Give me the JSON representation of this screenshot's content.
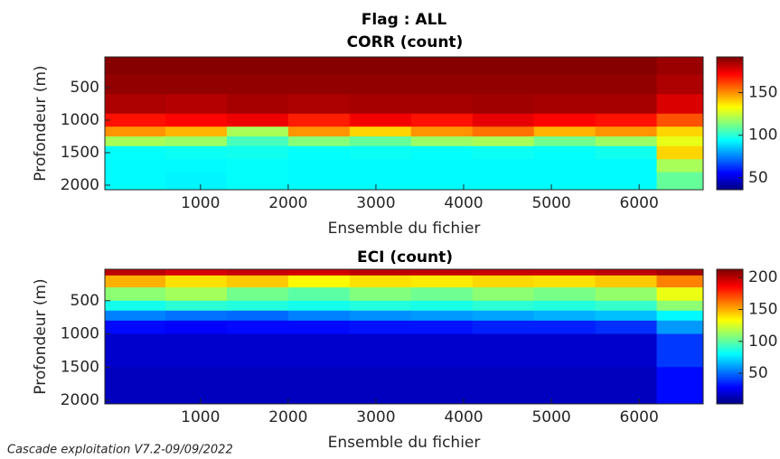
{
  "suptitle": "Flag : ALL",
  "footer": "Cascade exploitation V7.2-09/09/2022",
  "chart_data": [
    {
      "type": "heatmap",
      "title": "CORR (count)",
      "xlabel": "Ensemble du fichier",
      "ylabel": "Profondeur (m)",
      "colormap": "jet",
      "y_reversed": true,
      "xlim": [
        -90,
        6730
      ],
      "ylim": [
        28,
        2070
      ],
      "clim": [
        36,
        192
      ],
      "xticks": [
        1000,
        2000,
        3000,
        4000,
        5000,
        6000
      ],
      "yticks": [
        500,
        1000,
        1500,
        2000
      ],
      "cticks": [
        50,
        100,
        150
      ],
      "x_bins": [
        -90,
        600,
        1300,
        2000,
        2700,
        3400,
        4100,
        4800,
        5500,
        6200,
        6730
      ],
      "y_bins": [
        28,
        300,
        600,
        900,
        1100,
        1250,
        1400,
        1600,
        1800,
        2070
      ],
      "values": [
        [
          191,
          191,
          191,
          191,
          191,
          191,
          191,
          191,
          191,
          188
        ],
        [
          189,
          189,
          189,
          189,
          189,
          189,
          189,
          189,
          189,
          185
        ],
        [
          185,
          184,
          186,
          185,
          186,
          186,
          187,
          186,
          186,
          178
        ],
        [
          170,
          172,
          175,
          168,
          174,
          170,
          176,
          172,
          170,
          160
        ],
        [
          150,
          145,
          120,
          150,
          140,
          150,
          155,
          145,
          150,
          140
        ],
        [
          120,
          118,
          105,
          115,
          110,
          118,
          120,
          112,
          118,
          130
        ],
        [
          95,
          96,
          97,
          95,
          96,
          95,
          96,
          95,
          97,
          140
        ],
        [
          94,
          94,
          95,
          94,
          94,
          94,
          94,
          94,
          94,
          120
        ],
        [
          94,
          93,
          95,
          94,
          94,
          94,
          94,
          94,
          94,
          110
        ]
      ]
    },
    {
      "type": "heatmap",
      "title": "ECI (count)",
      "xlabel": "Ensemble du fichier",
      "ylabel": "Profondeur (m)",
      "colormap": "jet",
      "y_reversed": true,
      "xlim": [
        -90,
        6730
      ],
      "ylim": [
        27,
        2054
      ],
      "clim": [
        2,
        213
      ],
      "xticks": [
        1000,
        2000,
        3000,
        4000,
        5000,
        6000
      ],
      "yticks": [
        500,
        1000,
        1500,
        2000
      ],
      "cticks": [
        50,
        100,
        150,
        200
      ],
      "x_bins": [
        -90,
        600,
        1300,
        2000,
        2700,
        3400,
        4100,
        4800,
        5500,
        6200,
        6730
      ],
      "y_bins": [
        27,
        120,
        300,
        500,
        650,
        800,
        1000,
        1500,
        2054
      ],
      "values": [
        [
          200,
          195,
          198,
          196,
          200,
          199,
          198,
          197,
          200,
          205
        ],
        [
          150,
          140,
          145,
          135,
          140,
          138,
          142,
          140,
          145,
          160
        ],
        [
          110,
          115,
          105,
          100,
          108,
          104,
          110,
          106,
          112,
          130
        ],
        [
          85,
          90,
          88,
          85,
          88,
          86,
          90,
          88,
          92,
          110
        ],
        [
          55,
          52,
          50,
          55,
          58,
          60,
          62,
          65,
          68,
          80
        ],
        [
          30,
          28,
          30,
          30,
          32,
          32,
          35,
          35,
          38,
          60
        ],
        [
          18,
          18,
          18,
          18,
          18,
          18,
          18,
          18,
          18,
          40
        ],
        [
          15,
          15,
          15,
          15,
          15,
          15,
          15,
          15,
          15,
          30
        ]
      ]
    }
  ]
}
